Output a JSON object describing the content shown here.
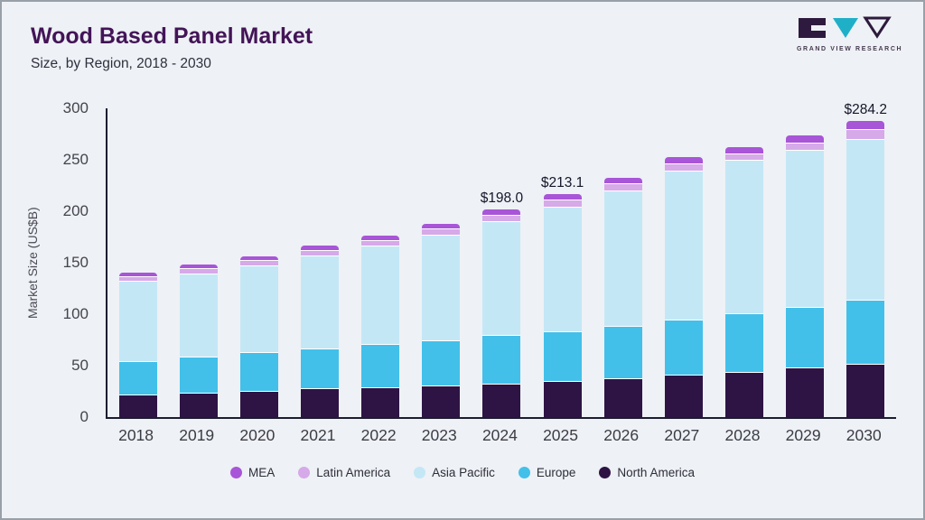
{
  "header": {
    "title": "Wood Based Panel Market",
    "subtitle": "Size, by Region, 2018 - 2030"
  },
  "logo": {
    "text": "GRAND VIEW RESEARCH",
    "dark_color": "#2e1a3e",
    "teal_color": "#1fb0c8"
  },
  "chart_data": {
    "type": "bar",
    "stacked": true,
    "title": "Wood Based Panel Market Size, by Region, 2018 - 2030",
    "xlabel": "",
    "ylabel": "Market Size (US$B)",
    "ylim": [
      0,
      300
    ],
    "yticks": [
      0,
      50,
      100,
      150,
      200,
      250,
      300
    ],
    "grid": false,
    "legend_position": "bottom",
    "categories": [
      2018,
      2019,
      2020,
      2021,
      2022,
      2023,
      2024,
      2025,
      2026,
      2027,
      2028,
      2029,
      2030
    ],
    "series": [
      {
        "name": "North America",
        "color": "#2e1445",
        "values": [
          21,
          23,
          25,
          27,
          28,
          30,
          32,
          34,
          37,
          40,
          43,
          47,
          51
        ]
      },
      {
        "name": "Europe",
        "color": "#42c0ea",
        "values": [
          32,
          34,
          36,
          38,
          41,
          43,
          46,
          48,
          50,
          53,
          56,
          58,
          61
        ]
      },
      {
        "name": "Asia Pacific",
        "color": "#c4e7f6",
        "values": [
          77,
          80,
          84,
          89,
          95,
          102,
          110,
          120,
          131,
          144,
          148,
          152,
          156
        ]
      },
      {
        "name": "Latin America",
        "color": "#d6a9e8",
        "values": [
          3.5,
          4,
          4,
          4.5,
          4.5,
          4.5,
          5,
          5.5,
          5.5,
          6,
          6,
          6.5,
          8
        ]
      },
      {
        "name": "MEA",
        "color": "#a855d8",
        "values": [
          3.5,
          4,
          4,
          4.5,
          4.5,
          4.5,
          5,
          5.6,
          5.5,
          6,
          6,
          6.5,
          8.2
        ]
      }
    ],
    "total_labels": {
      "2024": "$198.0",
      "2025": "$213.1",
      "2030": "$284.2"
    },
    "legend": [
      "MEA",
      "Latin America",
      "Asia Pacific",
      "Europe",
      "North America"
    ]
  }
}
